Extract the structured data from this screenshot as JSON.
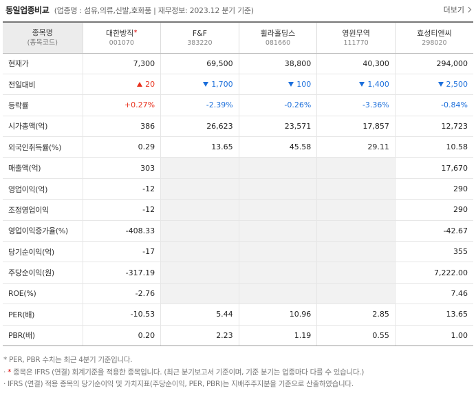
{
  "header": {
    "title": "동일업종비교",
    "meta": "(업종명 : 섬유,의류,신발,호화품 | 재무정보: 2023.12 분기 기준)",
    "more_label": "더보기"
  },
  "table": {
    "corner_label": "종목명",
    "corner_sub": "(종목코드)",
    "star_mark": "*",
    "companies": [
      {
        "name": "대한방직",
        "code": "001070",
        "ifrs_star": true
      },
      {
        "name": "F&F",
        "code": "383220",
        "ifrs_star": false
      },
      {
        "name": "휠라홀딩스",
        "code": "081660",
        "ifrs_star": false
      },
      {
        "name": "영원무역",
        "code": "111770",
        "ifrs_star": false
      },
      {
        "name": "효성티앤씨",
        "code": "298020",
        "ifrs_star": false
      }
    ],
    "rows": [
      {
        "label": "현재가",
        "cells": [
          "7,300",
          "69,500",
          "38,800",
          "40,300",
          "294,000"
        ]
      },
      {
        "label": "전일대비",
        "cells": [
          "20",
          "1,700",
          "100",
          "1,400",
          "2,500"
        ],
        "dirs": [
          "up",
          "dn",
          "dn",
          "dn",
          "dn"
        ]
      },
      {
        "label": "등락률",
        "cells": [
          "+0.27%",
          "-2.39%",
          "-0.26%",
          "-3.36%",
          "-0.84%"
        ],
        "dirs": [
          "up",
          "dn",
          "dn",
          "dn",
          "dn"
        ]
      },
      {
        "label": "시가총액(억)",
        "cells": [
          "386",
          "26,623",
          "23,571",
          "17,857",
          "12,723"
        ]
      },
      {
        "label": "외국인취득률(%)",
        "cells": [
          "0.29",
          "13.65",
          "45.58",
          "29.11",
          "10.58"
        ]
      },
      {
        "label": "매출액(억)",
        "cells": [
          "303",
          "",
          "",
          "",
          "17,670"
        ]
      },
      {
        "label": "영업이익(억)",
        "cells": [
          "-12",
          "",
          "",
          "",
          "290"
        ]
      },
      {
        "label": "조정영업이익",
        "cells": [
          "-12",
          "",
          "",
          "",
          "290"
        ]
      },
      {
        "label": "영업이익증가율(%)",
        "cells": [
          "-408.33",
          "",
          "",
          "",
          "-42.67"
        ]
      },
      {
        "label": "당기순이익(억)",
        "cells": [
          "-17",
          "",
          "",
          "",
          "355"
        ]
      },
      {
        "label": "주당순이익(원)",
        "cells": [
          "-317.19",
          "",
          "",
          "",
          "7,222.00"
        ]
      },
      {
        "label": "ROE(%)",
        "cells": [
          "-2.76",
          "",
          "",
          "",
          "7.46"
        ]
      },
      {
        "label": "PER(배)",
        "cells": [
          "-10.53",
          "5.44",
          "10.96",
          "2.85",
          "13.65"
        ]
      },
      {
        "label": "PBR(배)",
        "cells": [
          "0.20",
          "2.23",
          "1.19",
          "0.55",
          "1.00"
        ]
      }
    ]
  },
  "notes": {
    "line1": "* PER, PBR 수치는 최근 4분기 기준입니다.",
    "line2_prefix": "·",
    "line2_star": "*",
    "line2_text": "종목은 IFRS (연결) 회계기준을 적용한 종목입니다. (최근 분기보고서 기준이며, 기준 분기는 업종마다 다를 수 있습니다.)",
    "line3": "· IFRS (연결) 적용 종목의 당기순이익 및 가치지표(주당순이익, PER, PBR)는 지배주주지분을 기준으로 산출하였습니다."
  },
  "colors": {
    "up": "#e8301c",
    "down": "#1c6fdb",
    "star": "#dd0000"
  }
}
